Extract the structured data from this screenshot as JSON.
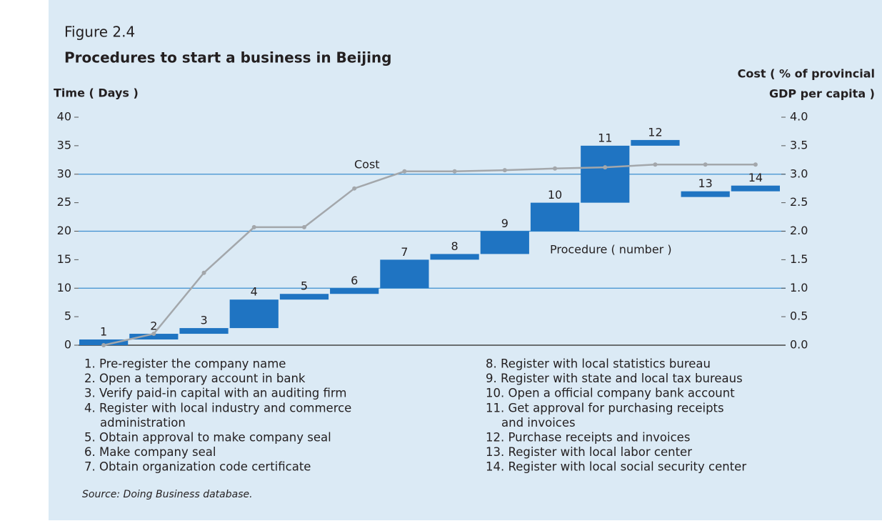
{
  "chart_data": {
    "type": "bar",
    "figure_label": "Figure 2.4",
    "title": "Procedures to start a business in Beijing",
    "ylabel": "Time ( Days )",
    "y2label": [
      "Cost ( % of provincial",
      "GDP per capita )"
    ],
    "categories": [
      "1",
      "2",
      "3",
      "4",
      "5",
      "6",
      "7",
      "8",
      "9",
      "10",
      "11",
      "12",
      "13",
      "14"
    ],
    "series": [
      {
        "name": "Procedure ( number )",
        "type": "range_bar",
        "color": "#1f74c2",
        "low": [
          0,
          1,
          2,
          3,
          8,
          9,
          10,
          15,
          16,
          20,
          25,
          35,
          26,
          27
        ],
        "high": [
          1,
          2,
          3,
          8,
          9,
          10,
          15,
          16,
          20,
          25,
          35,
          36,
          27,
          28
        ]
      },
      {
        "name": "Cost",
        "type": "line",
        "axis": "y2",
        "color": "#a3a7ab",
        "values": [
          0.0,
          0.2,
          1.27,
          2.07,
          2.07,
          2.75,
          3.05,
          3.05,
          3.07,
          3.1,
          3.12,
          3.17,
          3.17,
          3.17
        ]
      }
    ],
    "ylim": [
      0,
      40
    ],
    "yticks": [
      0,
      5,
      10,
      15,
      20,
      25,
      30,
      35,
      40
    ],
    "y2lim": [
      0,
      4
    ],
    "y2ticks": [
      {
        "value": 0,
        "label": "0.0"
      },
      {
        "value": 0.5,
        "label": "0.5"
      },
      {
        "value": 1,
        "label": "1.0"
      },
      {
        "value": 1.5,
        "label": "1.5"
      },
      {
        "value": 2,
        "label": "2.0"
      },
      {
        "value": 2.5,
        "label": "2.5"
      },
      {
        "value": 3,
        "label": "3.0"
      },
      {
        "value": 3.5,
        "label": "3.5"
      },
      {
        "value": 4,
        "label": "4.0"
      }
    ],
    "gridlines": [
      10,
      20,
      30
    ],
    "procedures": [
      [
        "1. Pre-register the company name"
      ],
      [
        "2. Open a temporary account in bank"
      ],
      [
        "3. Verify paid-in capital with an auditing firm"
      ],
      [
        "4. Register with local industry and commerce",
        "administration"
      ],
      [
        "5. Obtain approval to make company seal"
      ],
      [
        "6. Make company seal"
      ],
      [
        "7. Obtain organization code certificate"
      ],
      [
        "8. Register with local statistics bureau"
      ],
      [
        "9. Register with state and local tax bureaus"
      ],
      [
        "10. Open a official company bank account"
      ],
      [
        "11. Get approval for purchasing receipts",
        "and invoices"
      ],
      [
        "12. Purchase receipts and invoices"
      ],
      [
        "13. Register with local labor center"
      ],
      [
        "14. Register with local social security center"
      ]
    ],
    "source": "Source: Doing Business database."
  }
}
